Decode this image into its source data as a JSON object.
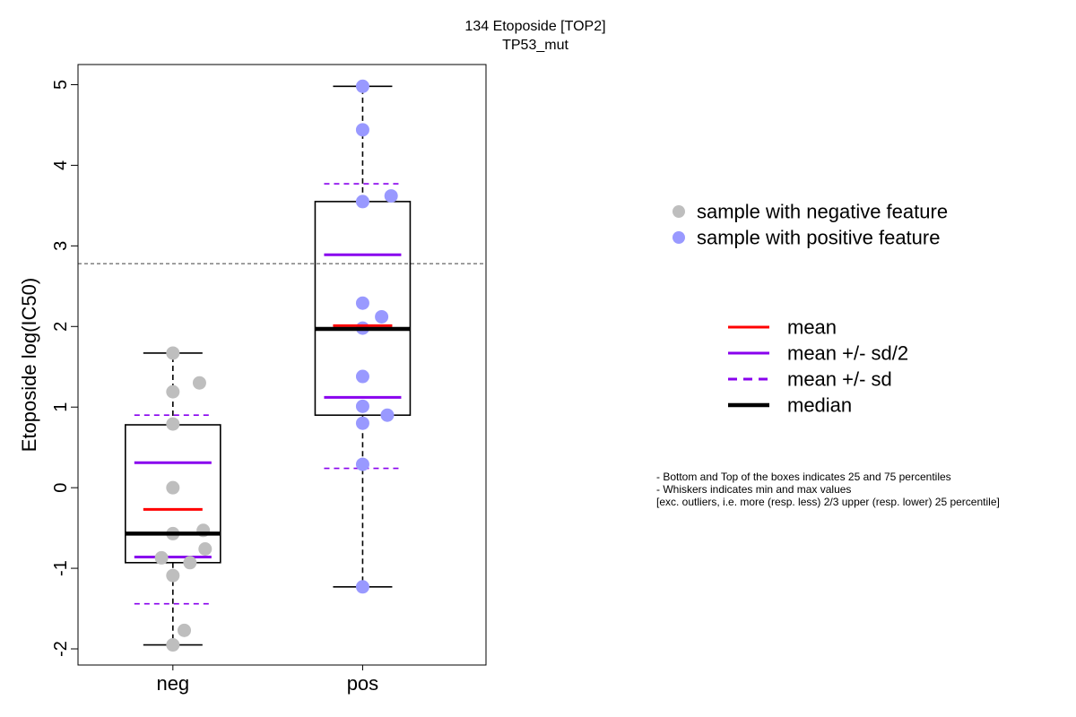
{
  "chart_data": {
    "type": "box",
    "title": "134 Etoposide [TOP2]",
    "subtitle": "TP53_mut",
    "ylabel": "Etoposide log(IC50)",
    "xlabel": "",
    "ylim": [
      -2.2,
      5.25
    ],
    "yticks": [
      -2,
      -1,
      0,
      1,
      2,
      3,
      4,
      5
    ],
    "ytick_labels": [
      "-2",
      "-1",
      "0",
      "1",
      "2",
      "3",
      "4",
      "5"
    ],
    "reference_line": 2.78,
    "categories": [
      "neg",
      "pos"
    ],
    "groups": [
      {
        "category": "neg",
        "color": "#bebebe",
        "min": -1.95,
        "q1": -0.93,
        "median": -0.57,
        "q3": 0.78,
        "max": 1.67,
        "mean": -0.27,
        "mean_minus_half_sd": -0.86,
        "mean_plus_half_sd": 0.31,
        "mean_minus_sd": -1.44,
        "mean_plus_sd": 0.9,
        "points": [
          {
            "x": 1.0,
            "y": 1.67
          },
          {
            "x": 1.14,
            "y": 1.3
          },
          {
            "x": 1.0,
            "y": 1.19
          },
          {
            "x": 1.0,
            "y": 0.79
          },
          {
            "x": 1.0,
            "y": 0.0
          },
          {
            "x": 1.0,
            "y": -0.57
          },
          {
            "x": 1.16,
            "y": -0.53
          },
          {
            "x": 1.17,
            "y": -0.76
          },
          {
            "x": 0.94,
            "y": -0.87
          },
          {
            "x": 1.09,
            "y": -0.93
          },
          {
            "x": 1.0,
            "y": -1.09
          },
          {
            "x": 1.06,
            "y": -1.77
          },
          {
            "x": 1.0,
            "y": -1.95
          }
        ]
      },
      {
        "category": "pos",
        "color": "#9999ff",
        "min": -1.23,
        "q1": 0.9,
        "median": 1.97,
        "q3": 3.55,
        "max": 4.98,
        "mean": 2.01,
        "mean_minus_half_sd": 1.12,
        "mean_plus_half_sd": 2.89,
        "mean_minus_sd": 0.24,
        "mean_plus_sd": 3.77,
        "points": [
          {
            "x": 2.0,
            "y": 4.98
          },
          {
            "x": 2.0,
            "y": 4.44
          },
          {
            "x": 2.15,
            "y": 3.62
          },
          {
            "x": 2.0,
            "y": 3.55
          },
          {
            "x": 2.0,
            "y": 2.29
          },
          {
            "x": 2.1,
            "y": 2.12
          },
          {
            "x": 2.0,
            "y": 1.98
          },
          {
            "x": 2.0,
            "y": 1.38
          },
          {
            "x": 2.0,
            "y": 1.01
          },
          {
            "x": 2.13,
            "y": 0.9
          },
          {
            "x": 2.0,
            "y": 0.8
          },
          {
            "x": 2.0,
            "y": 0.29
          },
          {
            "x": 2.0,
            "y": -1.23
          }
        ]
      }
    ],
    "legend_points": [
      {
        "label": "sample with negative feature",
        "color": "#bebebe"
      },
      {
        "label": "sample with positive feature",
        "color": "#9999ff"
      }
    ],
    "legend_lines": [
      {
        "label": "mean",
        "color": "#ff0000",
        "style": "solid"
      },
      {
        "label": "mean +/- sd/2",
        "color": "#8800ee",
        "style": "solid"
      },
      {
        "label": "mean +/- sd",
        "color": "#8800ee",
        "style": "dashed"
      },
      {
        "label": "median",
        "color": "#000000",
        "style": "thick"
      }
    ],
    "notes": [
      "- Bottom and Top of the boxes indicates 25 and 75 percentiles",
      "- Whiskers indicates min and max values",
      "[exc. outliers, i.e. more (resp. less) 2/3 upper (resp. lower) 25 percentile]"
    ]
  }
}
